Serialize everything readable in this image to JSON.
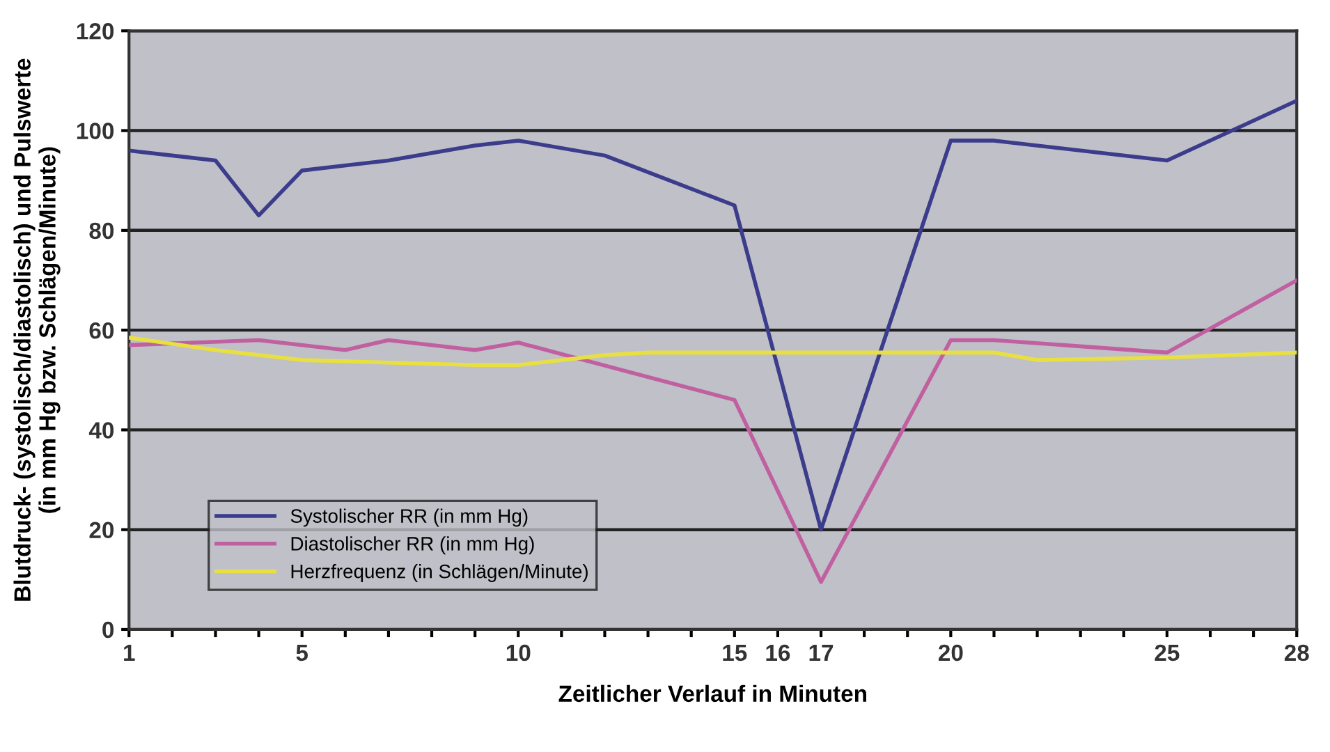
{
  "chart_data": {
    "type": "line",
    "xlabel": "Zeitlicher Verlauf in Minuten",
    "ylabel": "Blutdruck- (systolisch/diastolisch) und Pulswerte\n(in mm Hg bzw. Schlägen/Minute)",
    "series": [
      {
        "name": "Systolischer RR (in mm Hg)",
        "color": "#3c3c8c",
        "x": [
          1,
          3,
          4,
          5,
          7,
          9,
          10,
          12,
          15,
          17,
          20,
          21,
          25,
          28
        ],
        "values": [
          96,
          94,
          83,
          92,
          94,
          97,
          98,
          95,
          85,
          20,
          98,
          98,
          94,
          106
        ]
      },
      {
        "name": "Diastolischer RR (in mm Hg)",
        "color": "#c060a0",
        "x": [
          1,
          4,
          6,
          7,
          9,
          10,
          15,
          17,
          20,
          21,
          25,
          28
        ],
        "values": [
          57,
          58,
          56,
          58,
          56,
          57.5,
          46,
          9.5,
          58,
          58,
          55.5,
          70
        ]
      },
      {
        "name": "Herzfrequenz (in Schlägen/Minute)",
        "color": "#e8e040",
        "x": [
          1,
          3,
          5,
          7,
          9,
          10,
          12,
          13,
          17,
          21,
          22,
          25,
          28
        ],
        "values": [
          58.5,
          56,
          54,
          53.5,
          53,
          53,
          55,
          55.5,
          55.5,
          55.5,
          54,
          54.5,
          55.5
        ]
      }
    ],
    "xlim": [
      1,
      28
    ],
    "xticks": [
      1,
      {
        "value": 2,
        "label": null
      },
      {
        "value": 3,
        "label": null
      },
      {
        "value": 4,
        "label": null
      },
      5,
      {
        "value": 6,
        "label": null
      },
      {
        "value": 7,
        "label": null
      },
      {
        "value": 8,
        "label": null
      },
      {
        "value": 9,
        "label": null
      },
      10,
      {
        "value": 11,
        "label": null
      },
      {
        "value": 12,
        "label": null
      },
      {
        "value": 13,
        "label": null
      },
      {
        "value": 14,
        "label": null
      },
      15,
      16,
      17,
      {
        "value": 18,
        "label": null
      },
      {
        "value": 19,
        "label": null
      },
      20,
      {
        "value": 21,
        "label": null
      },
      {
        "value": 22,
        "label": null
      },
      {
        "value": 23,
        "label": null
      },
      {
        "value": 24,
        "label": null
      },
      25,
      {
        "value": 26,
        "label": null
      },
      {
        "value": 27,
        "label": null
      },
      28
    ],
    "ylim": [
      0,
      120
    ],
    "yticks": [
      0,
      20,
      40,
      60,
      80,
      100,
      120
    ],
    "grid": "y",
    "legend": "bottom left",
    "marker": "none",
    "line_style": "solid"
  }
}
